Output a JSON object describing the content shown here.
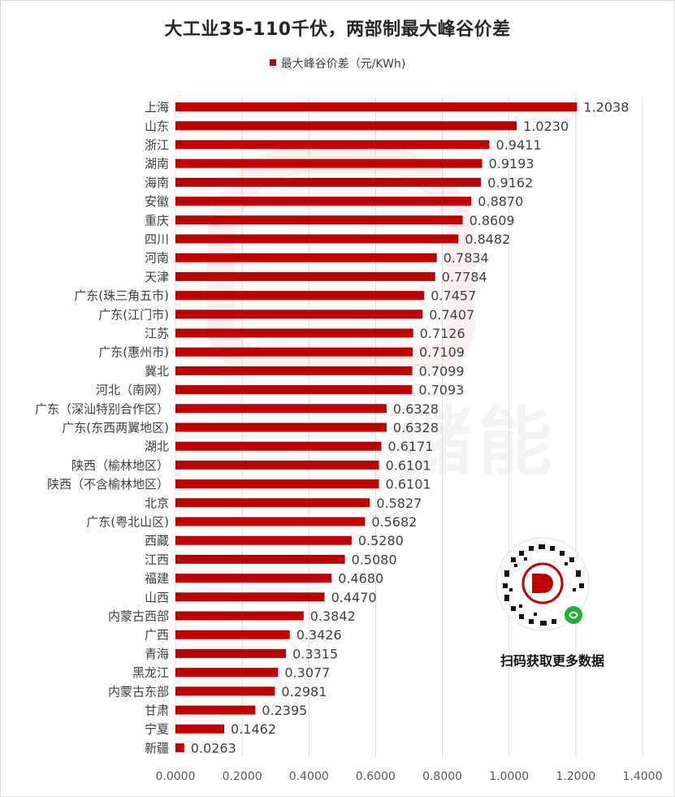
{
  "chart_data": {
    "type": "bar",
    "orientation": "horizontal",
    "title": "大工业35-110千伏，两部制最大峰谷价差",
    "legend_position": "top",
    "series": [
      {
        "name": "最大峰谷价差（元/KWh)",
        "color": "#c00000",
        "values": [
          1.2038,
          1.023,
          0.9411,
          0.9193,
          0.9162,
          0.887,
          0.8609,
          0.8482,
          0.7834,
          0.7784,
          0.7457,
          0.7407,
          0.7126,
          0.7109,
          0.7099,
          0.7093,
          0.6328,
          0.6328,
          0.6171,
          0.6101,
          0.6101,
          0.5827,
          0.5682,
          0.528,
          0.508,
          0.468,
          0.447,
          0.3842,
          0.3426,
          0.3315,
          0.3077,
          0.2981,
          0.2395,
          0.1462,
          0.0263
        ]
      }
    ],
    "categories": [
      "上海",
      "山东",
      "浙江",
      "湖南",
      "海南",
      "安徽",
      "重庆",
      "四川",
      "河南",
      "天津",
      "广东(珠三角五市)",
      "广东(江门市)",
      "江苏",
      "广东(惠州市)",
      "冀北",
      "河北（南网）",
      "广东（深汕特别合作区）",
      "广东(东西两翼地区)",
      "湖北",
      "陕西（榆林地区）",
      "陕西（不含榆林地区）",
      "北京",
      "广东(粤北山区)",
      "西藏",
      "江西",
      "福建",
      "山西",
      "内蒙古西部",
      "广西",
      "青海",
      "黑龙江",
      "内蒙古东部",
      "甘肃",
      "宁夏",
      "新疆"
    ],
    "value_labels": [
      "1.2038",
      "1.0230",
      "0.9411",
      "0.9193",
      "0.9162",
      "0.8870",
      "0.8609",
      "0.8482",
      "0.7834",
      "0.7784",
      "0.7457",
      "0.7407",
      "0.7126",
      "0.7109",
      "0.7099",
      "0.7093",
      "0.6328",
      "0.6328",
      "0.6171",
      "0.6101",
      "0.6101",
      "0.5827",
      "0.5682",
      "0.5280",
      "0.5080",
      "0.4680",
      "0.4470",
      "0.3842",
      "0.3426",
      "0.3315",
      "0.3077",
      "0.2981",
      "0.2395",
      "0.1462",
      "0.0263"
    ],
    "xlim": [
      0,
      1.4
    ],
    "x_ticks": [
      0,
      0.2,
      0.4,
      0.6,
      0.8,
      1.0,
      1.2,
      1.4
    ],
    "x_tick_labels": [
      "0.0000",
      "0.2000",
      "0.4000",
      "0.6000",
      "0.8000",
      "1.0000",
      "1.2000",
      "1.4000"
    ],
    "grid": "vertical"
  },
  "qr": {
    "caption": "扫码获取更多数据",
    "icon": "qr-code-icon",
    "accent": "#c00000"
  },
  "watermark": {
    "text": "储能"
  }
}
